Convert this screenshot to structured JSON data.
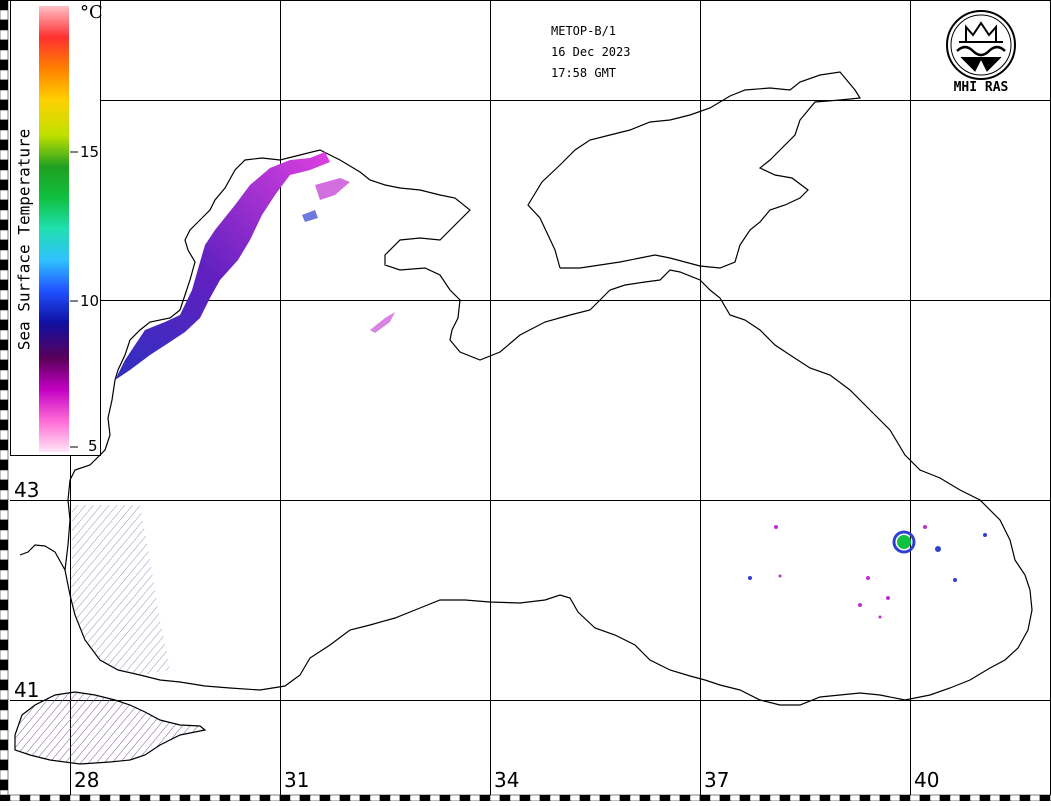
{
  "header": {
    "satellite": "METOP-B/1",
    "date": "16 Dec 2023",
    "time": "17:58 GMT"
  },
  "logo": {
    "text": "MHI RAS",
    "icon": "mhi-ras-emblem"
  },
  "legend": {
    "title": "Sea Surface Temperature",
    "unit": "°C",
    "ticks": [
      "15",
      "10",
      "5"
    ],
    "colors": [
      "#ffe6f5",
      "#ff6ad7",
      "#c400c4",
      "#5a005a",
      "#1010a0",
      "#2050ff",
      "#30c0ff",
      "#20e0b0",
      "#10c040",
      "#20a020",
      "#c0e000",
      "#ffd000",
      "#ff8000",
      "#ff3030",
      "#ffc0c8"
    ]
  },
  "grid": {
    "latitudes": [
      "43",
      "41"
    ],
    "longitudes": [
      "28",
      "31",
      "34",
      "37",
      "40"
    ]
  },
  "colors": {
    "grid": "#000000",
    "coast": "#000000",
    "cloud_mask": "#7a5aa0"
  }
}
